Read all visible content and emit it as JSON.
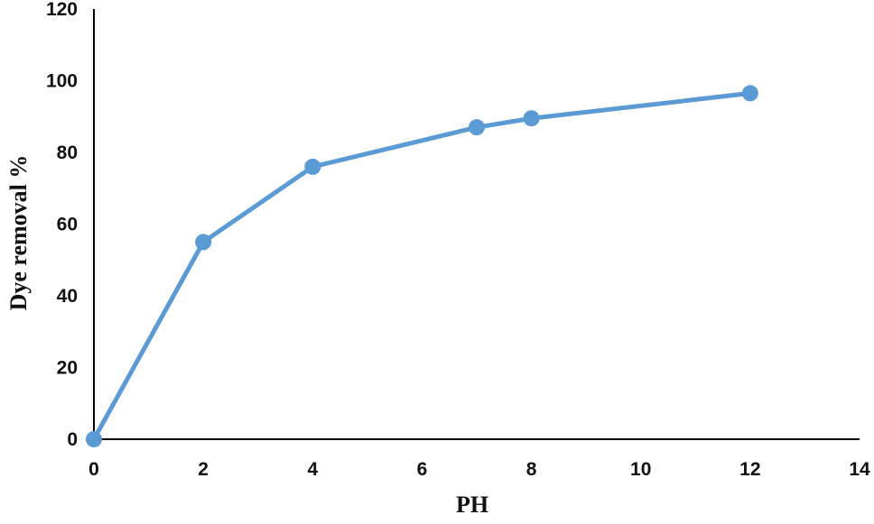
{
  "chart_data": {
    "type": "line",
    "title": "",
    "xlabel": "PH",
    "ylabel": "Dye removal %",
    "xlim": [
      0,
      14
    ],
    "ylim": [
      0,
      120
    ],
    "x_ticks": [
      0,
      2,
      4,
      6,
      8,
      10,
      12,
      14
    ],
    "y_ticks": [
      0,
      20,
      40,
      60,
      80,
      100,
      120
    ],
    "grid": false,
    "legend": "none",
    "series": [
      {
        "x": [
          0,
          2,
          4,
          7,
          8,
          12
        ],
        "y": [
          0,
          55,
          76,
          87,
          89.5,
          96.5
        ]
      }
    ],
    "colors": {
      "line": "#5b9bd5",
      "marker": "#5b9bd5",
      "axis": "#000000"
    }
  }
}
